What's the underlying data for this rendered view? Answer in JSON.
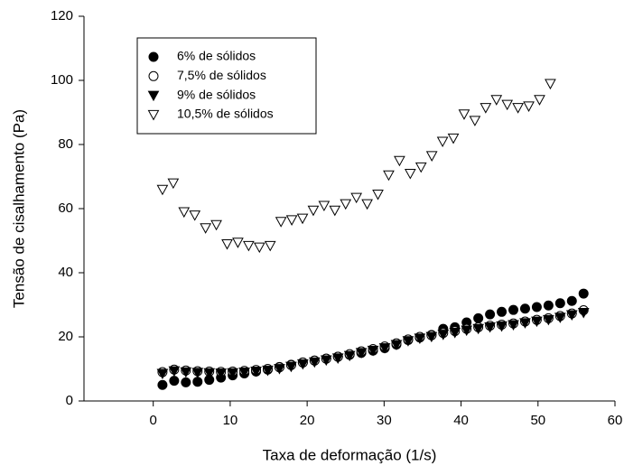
{
  "chart_data": {
    "type": "scatter",
    "x_label": "Taxa de deformação (1/s)",
    "y_label": "Tensão de cisalhamento (Pa)",
    "xlim": [
      -9,
      60
    ],
    "ylim": [
      0,
      120
    ],
    "xticks": [
      0,
      10,
      20,
      30,
      40,
      50,
      60
    ],
    "yticks": [
      0,
      20,
      40,
      60,
      80,
      100,
      120
    ],
    "grid": false,
    "legend": "upper left",
    "series": [
      {
        "name": "6% de sólidos",
        "color": "#000000",
        "marker": "circle",
        "filled": true,
        "x": [
          1.2,
          2.72,
          4.24,
          5.76,
          7.28,
          8.8,
          10.32,
          11.84,
          13.36,
          14.88,
          16.4,
          17.92,
          19.44,
          20.96,
          22.48,
          24,
          25.52,
          27.04,
          28.56,
          30.08,
          31.6,
          33.12,
          34.64,
          36.16,
          37.68,
          39.2,
          40.72,
          42.24,
          43.76,
          45.28,
          46.8,
          48.32,
          49.84,
          51.36,
          52.88,
          54.4,
          55.92
        ],
        "values": [
          5,
          6.3,
          5.8,
          6,
          6.6,
          7.3,
          8,
          8.6,
          9.2,
          9.8,
          10.6,
          11.3,
          12,
          12.6,
          13.2,
          13.8,
          14.4,
          15,
          15.7,
          16.5,
          17.6,
          19,
          19.8,
          20.6,
          22.5,
          23,
          24.5,
          25.8,
          27,
          27.8,
          28.4,
          28.8,
          29.3,
          29.8,
          30.5,
          31.2,
          33.5
        ]
      },
      {
        "name": "7,5% de sólidos",
        "color": "#000000",
        "marker": "circle",
        "filled": false,
        "x": [
          1.2,
          2.72,
          4.24,
          5.76,
          7.28,
          8.8,
          10.32,
          11.84,
          13.36,
          14.88,
          16.4,
          17.92,
          19.44,
          20.96,
          22.48,
          24,
          25.52,
          27.04,
          28.56,
          30.08,
          31.6,
          33.12,
          34.64,
          36.16,
          37.68,
          39.2,
          40.72,
          42.24,
          43.76,
          45.28,
          46.8,
          48.32,
          49.84,
          51.36,
          52.88,
          54.4,
          55.92
        ],
        "values": [
          9,
          9.8,
          9.5,
          9.3,
          9.2,
          9.1,
          9.2,
          9.4,
          9.7,
          10,
          10.5,
          11.2,
          12,
          12.6,
          13.2,
          13.8,
          14.6,
          15.5,
          16.2,
          17,
          18,
          19.2,
          20,
          20.5,
          21.2,
          21.8,
          22.5,
          23,
          23.5,
          23.8,
          24.2,
          24.8,
          25.3,
          25.8,
          26.5,
          27.3,
          28.3
        ]
      },
      {
        "name": "9% de sólidos",
        "color": "#000000",
        "marker": "triangle-down",
        "filled": true,
        "x": [
          1.2,
          2.72,
          4.24,
          5.76,
          7.28,
          8.8,
          10.32,
          11.84,
          13.36,
          14.88,
          16.4,
          17.92,
          19.44,
          20.96,
          22.48,
          24,
          25.52,
          27.04,
          28.56,
          30.08,
          31.6,
          33.12,
          34.64,
          36.16,
          37.68,
          39.2,
          40.72,
          42.24,
          43.76,
          45.28,
          46.8,
          48.32,
          49.84,
          51.36,
          52.88,
          54.4,
          55.92
        ],
        "values": [
          8.6,
          9.4,
          9.1,
          8.9,
          8.8,
          8.7,
          8.8,
          9,
          9.3,
          9.6,
          10.1,
          10.8,
          11.6,
          12.2,
          12.8,
          13.4,
          14.2,
          15.1,
          15.8,
          16.6,
          17.6,
          18.8,
          19.6,
          20.1,
          20.8,
          21.4,
          22.1,
          22.6,
          23.1,
          23.4,
          23.8,
          24.4,
          24.9,
          25.4,
          26.1,
          26.9,
          27.6
        ]
      },
      {
        "name": "10,5% de sólidos",
        "color": "#000000",
        "marker": "triangle-down",
        "filled": false,
        "x": [
          1.2,
          2.6,
          4,
          5.4,
          6.8,
          8.2,
          9.6,
          11,
          12.4,
          13.8,
          15.2,
          16.6,
          18,
          19.4,
          20.8,
          22.2,
          23.6,
          25,
          26.4,
          27.8,
          29.2,
          30.6,
          32,
          33.4,
          34.8,
          36.2,
          37.6,
          39,
          40.4,
          41.8,
          43.2,
          44.6,
          46,
          47.4,
          48.8,
          50.2,
          51.6
        ],
        "values": [
          66,
          68,
          59,
          58,
          54,
          55,
          49,
          49.5,
          48.5,
          48,
          48.5,
          56,
          56.5,
          57,
          59.5,
          61,
          59.5,
          61.5,
          63.5,
          61.5,
          64.5,
          70.5,
          75,
          71,
          73,
          76.5,
          81,
          82,
          89.5,
          87.5,
          91.5,
          94,
          92.5,
          91.5,
          92,
          94,
          99
        ]
      }
    ]
  }
}
